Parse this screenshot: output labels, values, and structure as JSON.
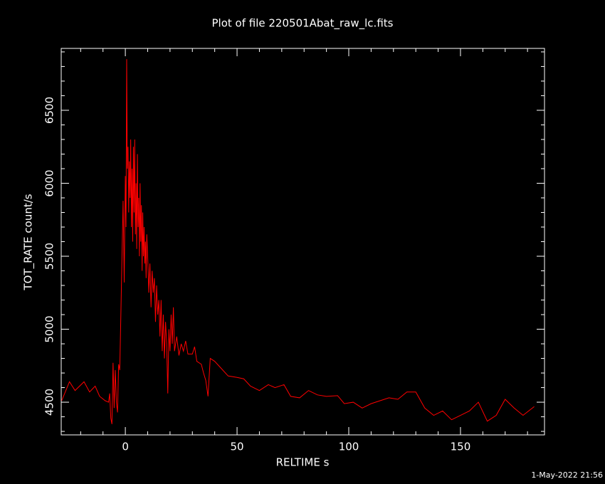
{
  "chart_data": {
    "type": "line",
    "title": "Plot of file 220501Abat_raw_lc.fits",
    "x_label": "RELTIME  s",
    "y_label": "TOT_RATE  count/s",
    "timestamp": "1-May-2022 21:56",
    "color": "#ff0000",
    "xlim": [
      -28.7,
      187.6
    ],
    "ylim": [
      4276,
      6924
    ],
    "xticks": [
      0,
      50,
      100,
      150
    ],
    "yticks": [
      4500,
      5000,
      5500,
      6000,
      6500
    ],
    "xminorticks": [
      -20,
      -10,
      10,
      20,
      30,
      40,
      60,
      70,
      80,
      90,
      110,
      120,
      130,
      140,
      160,
      170,
      180
    ],
    "yminorticks": [
      4300,
      4400,
      4600,
      4700,
      4800,
      4900,
      5100,
      5200,
      5300,
      5400,
      5600,
      5700,
      5800,
      5900,
      6100,
      6200,
      6300,
      6400,
      6600,
      6700,
      6800,
      6900
    ],
    "x": [
      -28.5,
      -25,
      -22.5,
      -18.5,
      -16,
      -13.5,
      -11.5,
      -9,
      -7.5,
      -7,
      -6.5,
      -6,
      -5.5,
      -5,
      -4.5,
      -4,
      -3.5,
      -3,
      -2.5,
      -2,
      -1.5,
      -1,
      -0.5,
      0,
      0.3,
      0.6,
      0.9,
      1.2,
      1.5,
      1.8,
      2.1,
      2.4,
      2.7,
      3,
      3.3,
      3.6,
      3.9,
      4.2,
      4.5,
      4.8,
      5.1,
      5.4,
      5.7,
      6,
      6.3,
      6.6,
      6.9,
      7.2,
      7.5,
      7.8,
      8.1,
      8.4,
      8.7,
      9,
      9.3,
      9.6,
      10,
      10.5,
      11,
      11.5,
      12,
      12.5,
      13,
      13.5,
      14,
      14.5,
      15,
      15.5,
      16,
      16.5,
      17,
      17.5,
      18,
      18.5,
      19,
      19.5,
      20,
      20.5,
      21,
      21.5,
      22,
      23,
      24,
      25,
      26,
      27,
      28,
      30,
      31,
      32,
      34,
      35,
      36,
      37,
      38,
      40,
      43,
      46,
      50,
      53,
      56,
      60,
      64,
      67,
      71,
      74,
      78,
      82,
      86,
      90,
      95,
      98,
      102,
      106,
      110,
      114,
      118,
      122,
      126,
      130,
      134,
      138,
      142,
      146,
      150,
      154,
      158,
      162,
      166,
      170,
      174,
      178,
      183
    ],
    "values": [
      4510,
      4640,
      4580,
      4640,
      4570,
      4610,
      4540,
      4510,
      4500,
      4560,
      4390,
      4350,
      4770,
      4460,
      4720,
      4500,
      4430,
      4760,
      4720,
      5100,
      5500,
      5880,
      5320,
      6050,
      5700,
      6850,
      6100,
      6250,
      5800,
      6150,
      5900,
      6300,
      5700,
      6100,
      5600,
      6250,
      5800,
      6300,
      5650,
      6000,
      5550,
      6200,
      5700,
      5900,
      5500,
      6000,
      5600,
      5850,
      5400,
      5800,
      5500,
      5700,
      5450,
      5600,
      5350,
      5650,
      5500,
      5250,
      5450,
      5150,
      5400,
      5250,
      5350,
      5050,
      5300,
      5100,
      5200,
      4950,
      5200,
      4850,
      5100,
      4800,
      5050,
      4900,
      4560,
      5000,
      4850,
      5100,
      4900,
      5150,
      4850,
      4950,
      4820,
      4900,
      4850,
      4920,
      4830,
      4830,
      4880,
      4780,
      4760,
      4700,
      4650,
      4540,
      4800,
      4780,
      4730,
      4680,
      4670,
      4660,
      4610,
      4580,
      4620,
      4600,
      4620,
      4540,
      4530,
      4580,
      4550,
      4540,
      4545,
      4490,
      4500,
      4460,
      4490,
      4510,
      4530,
      4520,
      4570,
      4570,
      4460,
      4410,
      4440,
      4380,
      4410,
      4440,
      4500,
      4370,
      4410,
      4520,
      4460,
      4410,
      4470
    ]
  }
}
